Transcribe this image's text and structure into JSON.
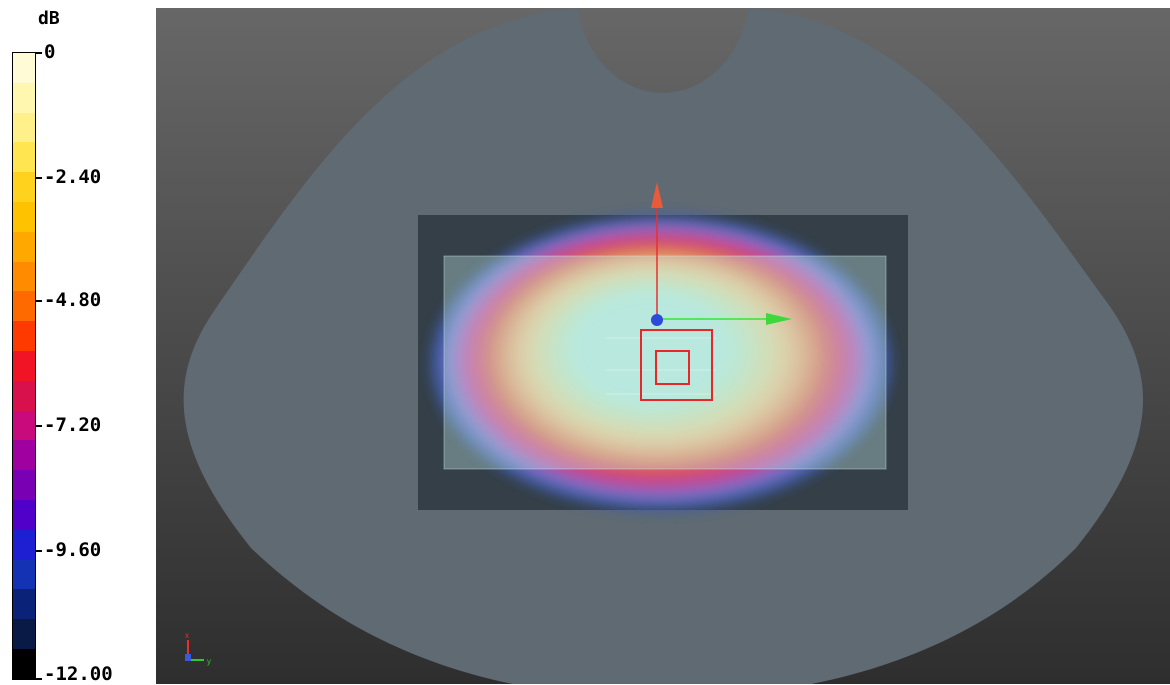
{
  "legend": {
    "unit": "dB",
    "tick_labels": [
      "0",
      "-2.40",
      "-4.80",
      "-7.20",
      "-9.60",
      "-12.00"
    ],
    "colors": [
      "#fffbd6",
      "#fff7b0",
      "#fff08a",
      "#ffe650",
      "#ffd21e",
      "#ffc200",
      "#ffa800",
      "#ff8c00",
      "#ff6a00",
      "#ff3a00",
      "#f01424",
      "#d8104c",
      "#c80a7c",
      "#a000a0",
      "#7a00b4",
      "#5000c8",
      "#1e1ed2",
      "#1432b4",
      "#0a2378",
      "#0a1a46",
      "#000000"
    ]
  },
  "viewport": {
    "axes_indicator": {
      "x": "x",
      "y": "y"
    },
    "heatmap_colors": [
      "#3c5aa0",
      "#7070c4",
      "#b050a8",
      "#d04a78",
      "#d86058",
      "#e08a60",
      "#e4ac78",
      "#e2c68c",
      "#d6d49c",
      "#c6dcb0",
      "#b8e2c4",
      "#b0e4d6"
    ]
  }
}
